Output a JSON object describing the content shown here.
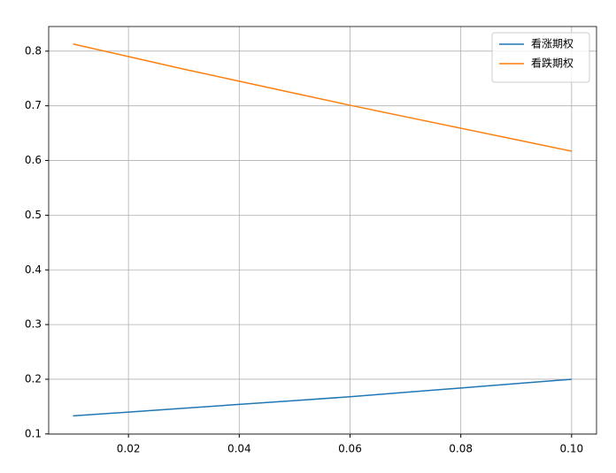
{
  "chart_data": {
    "type": "line",
    "x": [
      0.01,
      0.02,
      0.03,
      0.04,
      0.05,
      0.06,
      0.07,
      0.08,
      0.09,
      0.1
    ],
    "series": [
      {
        "name": "看涨期权",
        "color": "#1f77b4",
        "values": [
          0.133,
          0.14,
          0.147,
          0.154,
          0.161,
          0.168,
          0.176,
          0.184,
          0.192,
          0.2
        ]
      },
      {
        "name": "看跌期权",
        "color": "#ff7f0e",
        "values": [
          0.813,
          0.79,
          0.767,
          0.745,
          0.723,
          0.701,
          0.68,
          0.659,
          0.638,
          0.617
        ]
      }
    ],
    "xlim": [
      0.0056,
      0.1045
    ],
    "xticks": [
      0.02,
      0.04,
      0.06,
      0.08,
      {
        "value": 0.1,
        "label": "0.10"
      }
    ],
    "ylim": [
      0.0997,
      0.845
    ],
    "yticks": [
      0.1,
      0.2,
      0.3,
      0.4,
      0.5,
      0.6,
      0.7,
      0.8
    ],
    "grid": true,
    "legend": "upper-right"
  }
}
